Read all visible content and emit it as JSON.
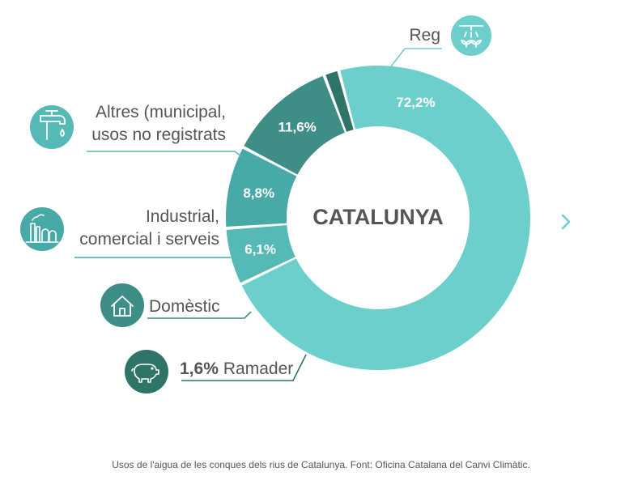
{
  "chart_data": {
    "type": "pie",
    "title": "CATALUNYA",
    "slices": [
      {
        "label": "Reg",
        "value": 72.2,
        "value_label": "72,2%",
        "color": "#6dcfcb",
        "icon": "sprinkler-icon"
      },
      {
        "label": "Altres (municipal, usos no registrats",
        "label_lines": [
          "Altres (municipal,",
          "usos no registrats"
        ],
        "value": 6.1,
        "value_label": "6,1%",
        "color": "#55bab6",
        "icon": "water-tap-icon"
      },
      {
        "label": "Industrial, comercial i serveis",
        "label_lines": [
          "Industrial,",
          "comercial i serveis"
        ],
        "value": 8.8,
        "value_label": "8,8%",
        "color": "#48aaa6",
        "icon": "factory-icon"
      },
      {
        "label": "Domèstic",
        "value": 11.6,
        "value_label": "11,6%",
        "color": "#3e8d87",
        "icon": "house-icon"
      },
      {
        "label": "Ramader",
        "value": 1.6,
        "value_label": "1,6%",
        "color": "#2f7468",
        "icon": "pig-icon"
      }
    ]
  },
  "caption": "Usos de l'aigua de les conques dels rius de Catalunya. Font: Oficina Catalana del Canvi Climàtic.",
  "nav": {
    "next_icon": "chevron-right-icon",
    "color": "#6dcfcb"
  }
}
